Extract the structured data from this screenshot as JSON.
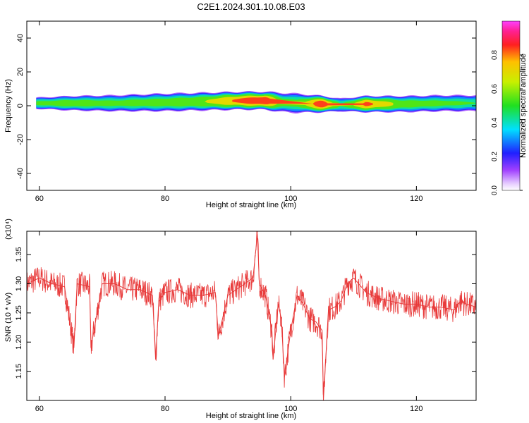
{
  "title": "C2E1.2024.301.10.08.E03",
  "chart_data": [
    {
      "type": "heatmap",
      "xlabel": "Height of straight line (km)",
      "ylabel": "Frequency (Hz)",
      "xlim": [
        58,
        129.5
      ],
      "ylim": [
        -50,
        50
      ],
      "xticks": [
        60,
        80,
        100,
        120
      ],
      "yticks": [
        -40,
        -20,
        0,
        20,
        40
      ],
      "colorbar": {
        "label": "Normalized spectral amplitude",
        "range": [
          0,
          1
        ],
        "ticks": [
          0.0,
          0.2,
          0.4,
          0.6,
          0.8
        ]
      },
      "band": [
        {
          "x": 59.5,
          "center": 1.5,
          "halfwidth": 3.5,
          "peak": 0.55
        },
        {
          "x": 65,
          "center": 1.5,
          "halfwidth": 4.5,
          "peak": 0.6
        },
        {
          "x": 72,
          "center": 1.5,
          "halfwidth": 5.0,
          "peak": 0.55
        },
        {
          "x": 80,
          "center": 2.0,
          "halfwidth": 5.5,
          "peak": 0.6
        },
        {
          "x": 86,
          "center": 2.5,
          "halfwidth": 5.5,
          "peak": 0.65
        },
        {
          "x": 92,
          "center": 3.0,
          "halfwidth": 5.5,
          "peak": 0.85
        },
        {
          "x": 96,
          "center": 3.0,
          "halfwidth": 5.5,
          "peak": 0.95
        },
        {
          "x": 98.5,
          "center": 2.0,
          "halfwidth": 6.0,
          "peak": 0.6
        },
        {
          "x": 101,
          "center": 1.5,
          "halfwidth": 6.0,
          "peak": 0.55
        },
        {
          "x": 105,
          "center": 1.0,
          "halfwidth": 5.0,
          "peak": 0.95
        },
        {
          "x": 108,
          "center": 0.5,
          "halfwidth": 4.0,
          "peak": 0.5
        },
        {
          "x": 112,
          "center": 1.0,
          "halfwidth": 5.0,
          "peak": 0.85
        },
        {
          "x": 118,
          "center": 1.0,
          "halfwidth": 5.0,
          "peak": 0.6
        },
        {
          "x": 124,
          "center": 1.5,
          "halfwidth": 5.0,
          "peak": 0.55
        },
        {
          "x": 129.5,
          "center": 1.5,
          "halfwidth": 5.0,
          "peak": 0.5
        }
      ]
    },
    {
      "type": "line",
      "xlabel": "Height of straight line (km)",
      "ylabel": "SNR (10 * v/v)",
      "yexponent_label": "(x10⁴)",
      "xlim": [
        58,
        129.5
      ],
      "ylim": [
        1.1,
        1.39
      ],
      "xticks": [
        60,
        80,
        100,
        120
      ],
      "yticks": [
        1.15,
        1.2,
        1.25,
        1.3,
        1.35
      ],
      "line_color": "#e83a3a",
      "series": [
        {
          "x": [
            58,
            60,
            62,
            64,
            65.5,
            66,
            68,
            68.2,
            70,
            72,
            74,
            76,
            78,
            78.5,
            79,
            80,
            82,
            84,
            86,
            88,
            88.5,
            90,
            92,
            94,
            94.7,
            95,
            96,
            97,
            97.2,
            98,
            98.5,
            99,
            100,
            101,
            102,
            103,
            104,
            105,
            105.2,
            106,
            107,
            108,
            109,
            110,
            112,
            114,
            116,
            118,
            120,
            122,
            124,
            126,
            127,
            128,
            129.5
          ],
          "values": [
            1.3,
            1.31,
            1.3,
            1.295,
            1.19,
            1.3,
            1.295,
            1.19,
            1.3,
            1.3,
            1.29,
            1.29,
            1.28,
            1.17,
            1.27,
            1.285,
            1.29,
            1.28,
            1.28,
            1.285,
            1.21,
            1.28,
            1.295,
            1.31,
            1.385,
            1.3,
            1.28,
            1.22,
            1.17,
            1.265,
            1.24,
            1.14,
            1.22,
            1.28,
            1.265,
            1.24,
            1.235,
            1.22,
            1.1,
            1.255,
            1.26,
            1.27,
            1.3,
            1.31,
            1.285,
            1.275,
            1.27,
            1.265,
            1.265,
            1.26,
            1.26,
            1.255,
            1.27,
            1.265,
            1.26
          ]
        }
      ]
    }
  ]
}
